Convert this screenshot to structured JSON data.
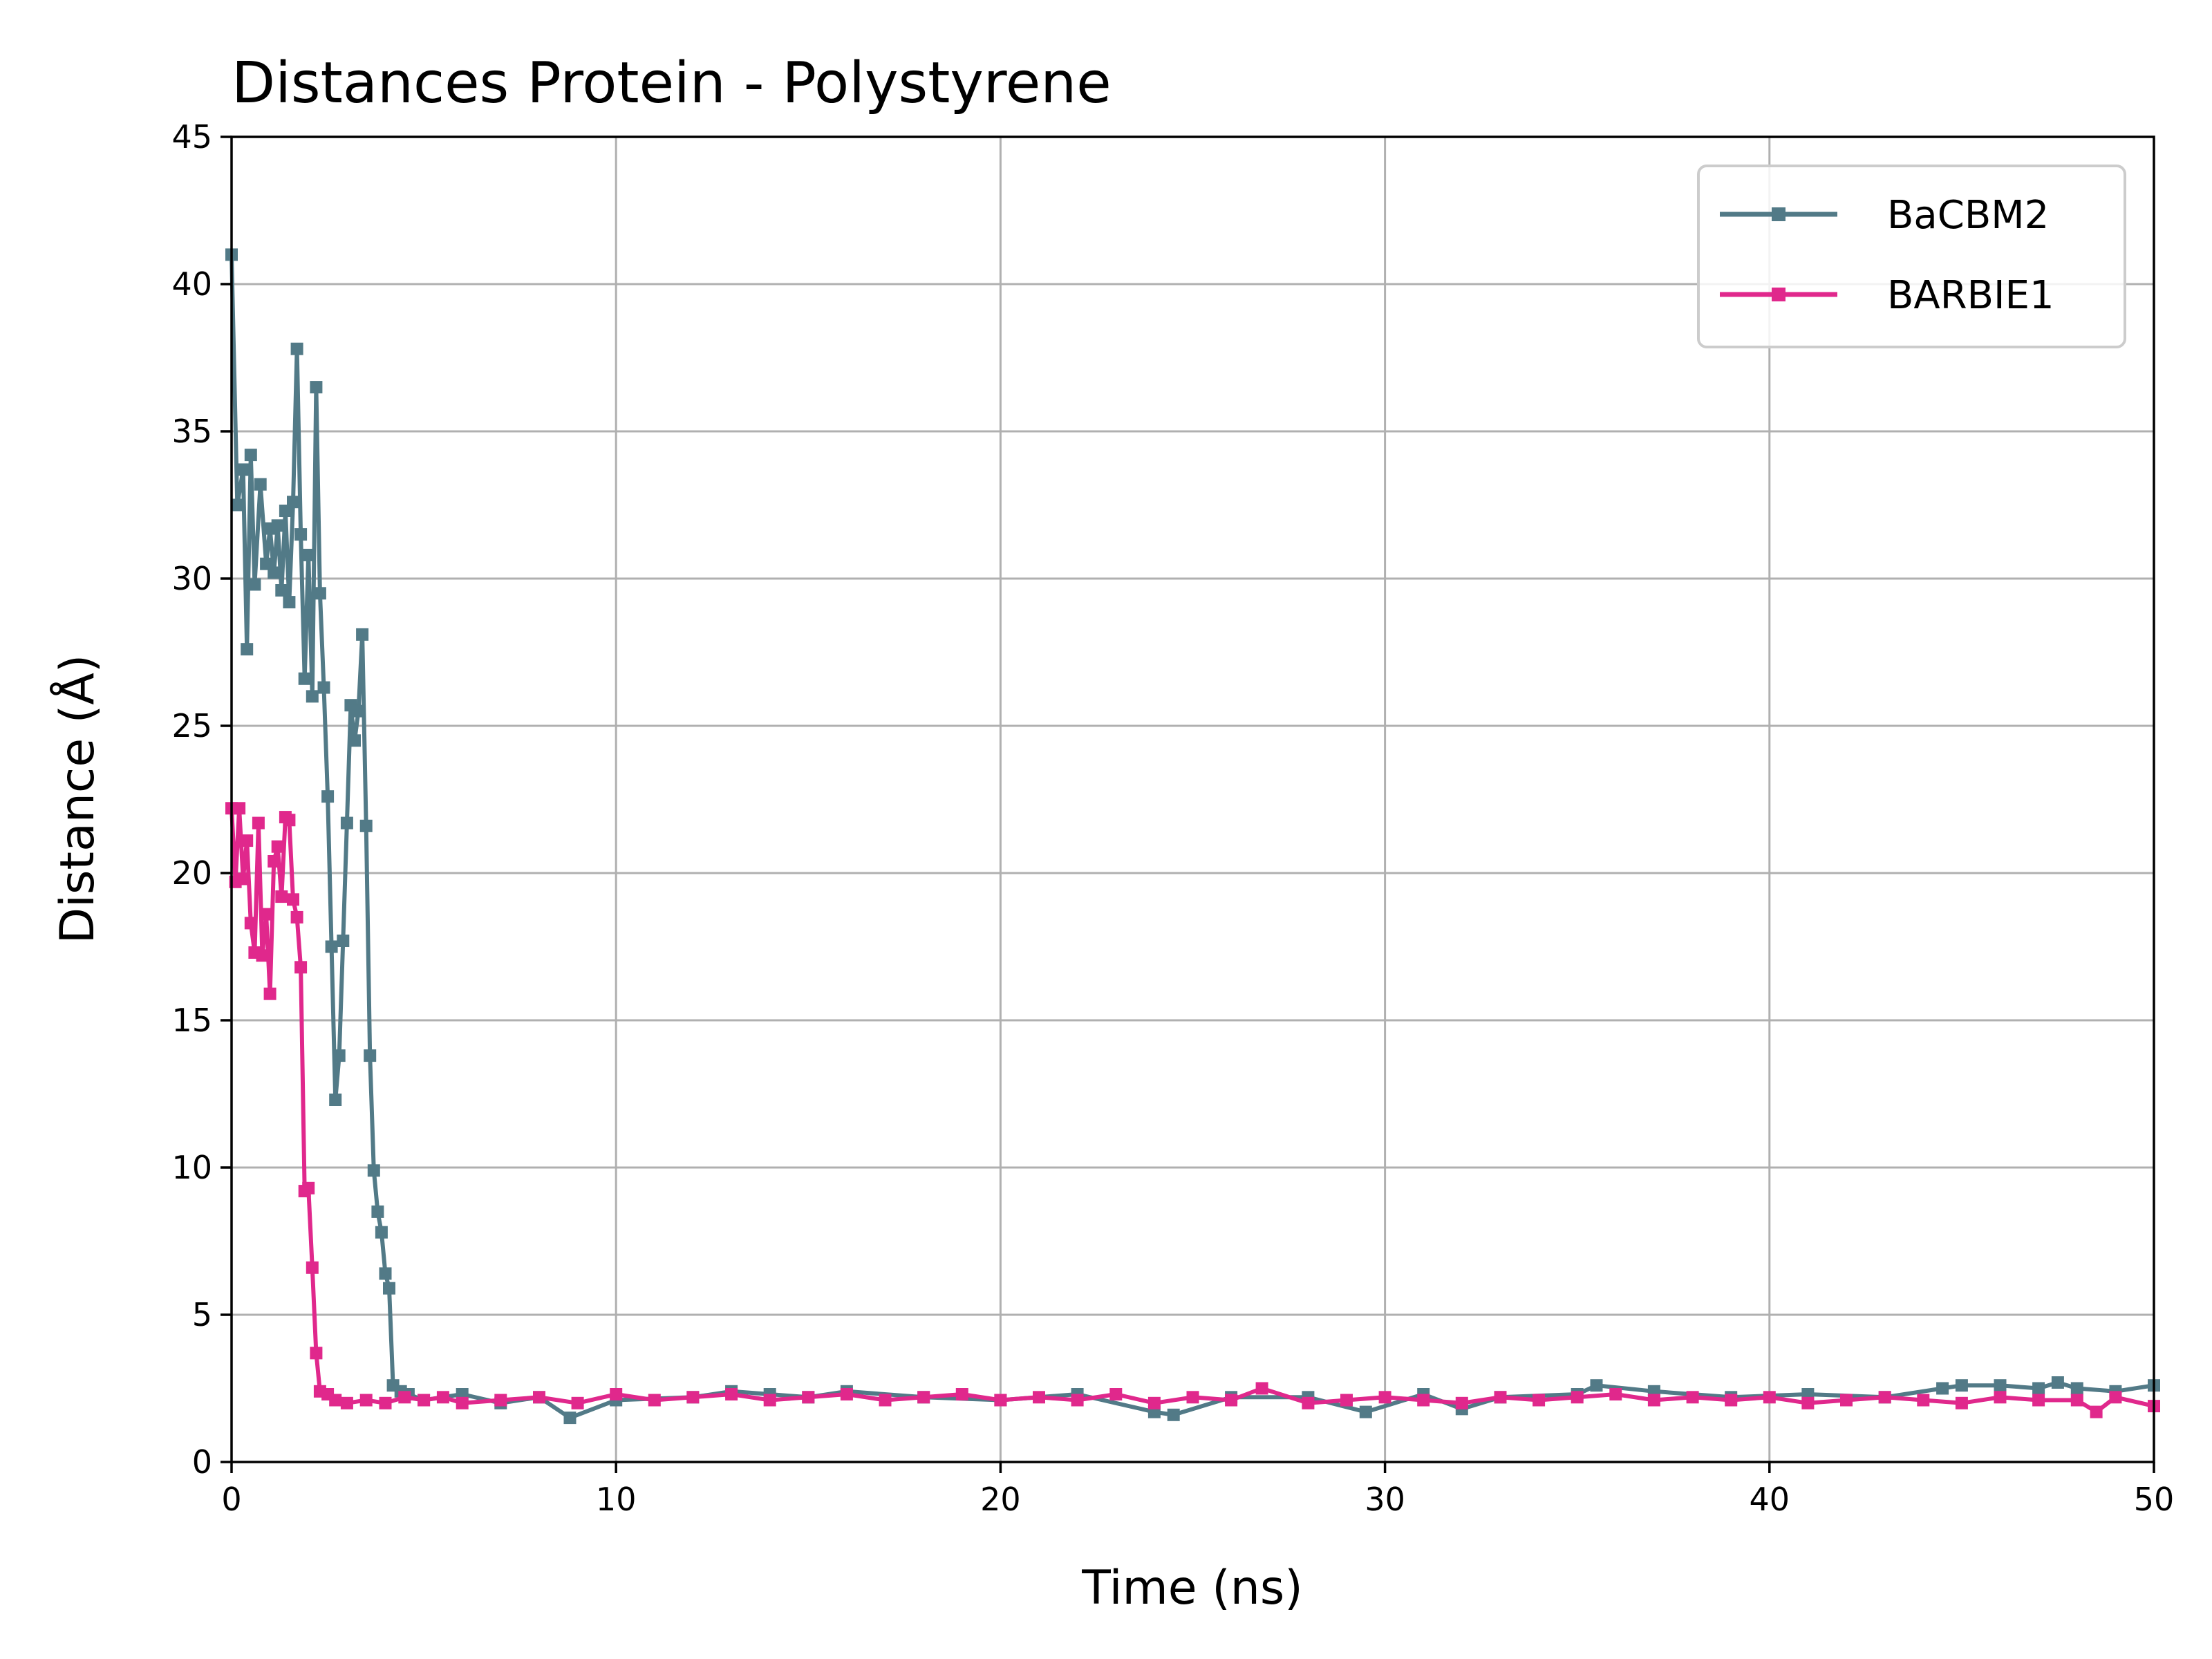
{
  "chart_data": {
    "type": "line",
    "title": "Distances Protein - Polystyrene",
    "xlabel": "Time (ns)",
    "ylabel": "Distance (Å)",
    "xlim": [
      0,
      50
    ],
    "ylim": [
      0,
      45
    ],
    "xticks": [
      "0",
      "10",
      "20",
      "30",
      "40",
      "50"
    ],
    "yticks": [
      "0",
      "5",
      "10",
      "15",
      "20",
      "25",
      "30",
      "35",
      "40",
      "45"
    ],
    "grid": true,
    "legend_position": "top-right",
    "series": [
      {
        "name": "BaCBM2",
        "color": "#527a87",
        "marker": "square",
        "x": [
          0,
          0.15,
          0.3,
          0.4,
          0.5,
          0.6,
          0.75,
          0.9,
          1.0,
          1.1,
          1.2,
          1.3,
          1.4,
          1.5,
          1.6,
          1.7,
          1.8,
          1.9,
          2.0,
          2.1,
          2.2,
          2.3,
          2.4,
          2.5,
          2.6,
          2.7,
          2.8,
          2.9,
          3.0,
          3.1,
          3.2,
          3.3,
          3.4,
          3.5,
          3.6,
          3.7,
          3.8,
          3.9,
          4.0,
          4.1,
          4.2,
          4.4,
          4.6,
          5,
          6,
          7,
          8,
          8.8,
          10,
          12,
          13,
          14,
          15,
          16,
          18,
          20,
          22,
          24,
          24.5,
          26,
          28,
          29.5,
          31,
          32,
          33,
          35,
          35.5,
          37,
          39,
          41,
          43,
          44.5,
          45,
          46,
          47,
          47.5,
          48,
          49,
          50
        ],
        "y": [
          41,
          32.5,
          33.7,
          27.6,
          34.2,
          29.8,
          33.2,
          30.5,
          31.7,
          30.2,
          31.8,
          29.6,
          32.3,
          29.2,
          32.6,
          37.8,
          31.5,
          26.6,
          30.8,
          26,
          36.5,
          29.5,
          26.3,
          22.6,
          17.5,
          12.3,
          13.8,
          17.7,
          21.7,
          25.7,
          24.5,
          25.5,
          28.1,
          21.6,
          13.8,
          9.9,
          8.5,
          7.8,
          6.4,
          5.9,
          2.6,
          2.4,
          2.3,
          2.1,
          2.3,
          2.0,
          2.2,
          1.5,
          2.1,
          2.2,
          2.4,
          2.3,
          2.2,
          2.4,
          2.2,
          2.1,
          2.3,
          1.7,
          1.6,
          2.2,
          2.2,
          1.7,
          2.3,
          1.8,
          2.2,
          2.3,
          2.6,
          2.4,
          2.2,
          2.3,
          2.2,
          2.5,
          2.6,
          2.6,
          2.5,
          2.7,
          2.5,
          2.4,
          2.6
        ]
      },
      {
        "name": "BARBIE1",
        "color": "#e0288c",
        "marker": "square",
        "x": [
          0,
          0.1,
          0.2,
          0.3,
          0.4,
          0.5,
          0.6,
          0.7,
          0.8,
          0.9,
          1.0,
          1.1,
          1.2,
          1.3,
          1.4,
          1.5,
          1.6,
          1.7,
          1.8,
          1.9,
          2.0,
          2.1,
          2.2,
          2.3,
          2.5,
          2.7,
          3,
          3.5,
          4,
          4.5,
          5,
          5.5,
          6,
          7,
          8,
          9,
          10,
          11,
          12,
          13,
          14,
          15,
          16,
          17,
          18,
          19,
          20,
          21,
          22,
          23,
          24,
          25,
          26,
          26.8,
          28,
          29,
          30,
          31,
          32,
          33,
          34,
          35,
          36,
          37,
          38,
          39,
          40,
          41,
          42,
          43,
          44,
          45,
          46,
          47,
          48,
          48.5,
          49,
          50
        ],
        "y": [
          22.2,
          19.7,
          22.2,
          19.8,
          21.1,
          18.3,
          17.3,
          21.7,
          17.2,
          18.6,
          15.9,
          20.4,
          20.9,
          19.2,
          21.9,
          21.8,
          19.1,
          18.5,
          16.8,
          9.2,
          9.3,
          6.6,
          3.7,
          2.4,
          2.3,
          2.1,
          2.0,
          2.1,
          2.0,
          2.2,
          2.1,
          2.2,
          2.0,
          2.1,
          2.2,
          2.0,
          2.3,
          2.1,
          2.2,
          2.3,
          2.1,
          2.2,
          2.3,
          2.1,
          2.2,
          2.3,
          2.1,
          2.2,
          2.1,
          2.3,
          2.0,
          2.2,
          2.1,
          2.5,
          2.0,
          2.1,
          2.2,
          2.1,
          2.0,
          2.2,
          2.1,
          2.2,
          2.3,
          2.1,
          2.2,
          2.1,
          2.2,
          2.0,
          2.1,
          2.2,
          2.1,
          2.0,
          2.2,
          2.1,
          2.1,
          1.7,
          2.2,
          1.9
        ]
      }
    ]
  }
}
